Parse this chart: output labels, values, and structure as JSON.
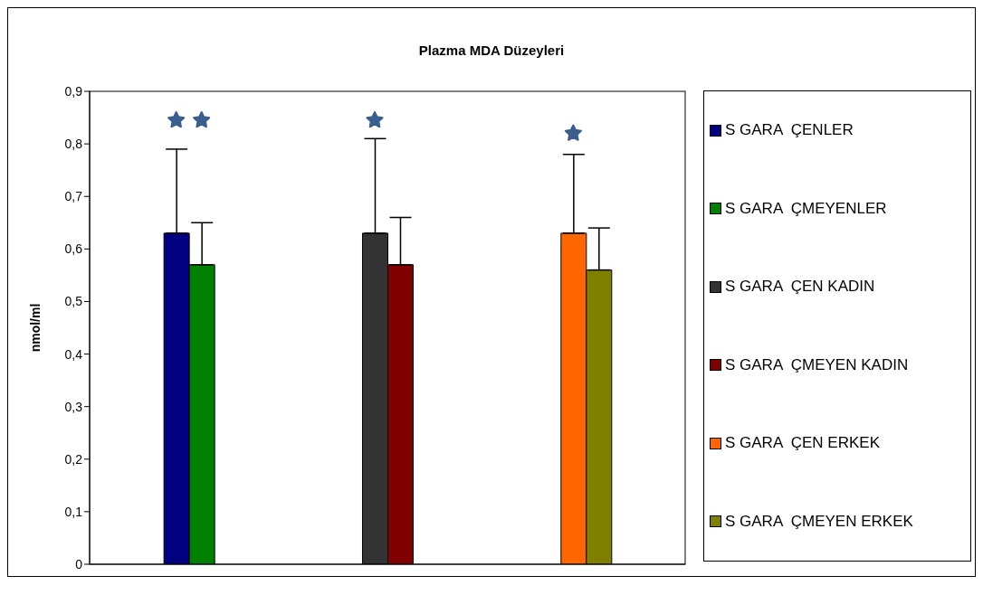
{
  "chart_data": {
    "type": "bar",
    "title": "Plazma MDA Düzeyleri",
    "ylabel": "nmol/ml",
    "categories": [
      null,
      null,
      null
    ],
    "series": [
      {
        "name": "S GARA  ÇENLER",
        "color": "#000080",
        "values": [
          0.63,
          null,
          null
        ],
        "errors": [
          [
            0.63,
            0.79
          ],
          null,
          null
        ]
      },
      {
        "name": "S GARA  ÇMEYENLER",
        "color": "#008000",
        "values": [
          0.57,
          null,
          null
        ],
        "errors": [
          [
            0.57,
            0.65
          ],
          null,
          null
        ]
      },
      {
        "name": "S GARA  ÇEN KADIN",
        "color": "#333333",
        "values": [
          null,
          0.63,
          null
        ],
        "errors": [
          null,
          [
            0.63,
            0.81
          ],
          null
        ]
      },
      {
        "name": "S GARA  ÇMEYEN KADIN",
        "color": "#800000",
        "values": [
          null,
          0.57,
          null
        ],
        "errors": [
          null,
          [
            0.57,
            0.66
          ],
          null
        ]
      },
      {
        "name": "S GARA  ÇEN ERKEK",
        "color": "#ff6600",
        "values": [
          null,
          null,
          0.63
        ],
        "errors": [
          null,
          null,
          [
            0.63,
            0.78
          ]
        ]
      },
      {
        "name": "S GARA  ÇMEYEN ERKEK",
        "color": "#808000",
        "values": [
          null,
          null,
          0.56
        ],
        "errors": [
          null,
          null,
          [
            0.56,
            0.64
          ]
        ]
      }
    ],
    "ylim": [
      0,
      0.9
    ],
    "yticks": [
      0,
      {
        "value": 0.1,
        "label": "0,1"
      },
      {
        "value": 0.2,
        "label": "0,2"
      },
      {
        "value": 0.3,
        "label": "0,3"
      },
      {
        "value": 0.4,
        "label": "0,4"
      },
      {
        "value": 0.5,
        "label": "0,5"
      },
      {
        "value": 0.6,
        "label": "0,6"
      },
      {
        "value": 0.7,
        "label": "0,7"
      },
      {
        "value": 0.8,
        "label": "0,8"
      },
      {
        "value": 0.9,
        "label": "0,9"
      }
    ],
    "legend": "right"
  }
}
